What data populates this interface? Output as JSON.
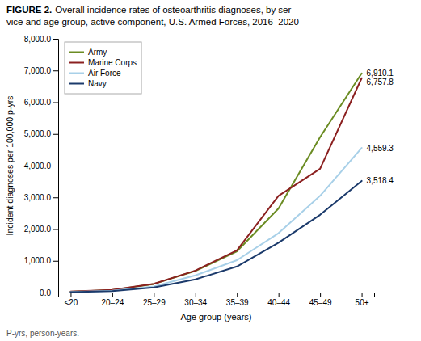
{
  "chart_data": {
    "type": "line",
    "title": "FIGURE 2.",
    "subtitle": "Overall incidence rates of osteoarthritis diagnoses, by ser-\nvice and age group, active component, U.S. Armed Forces, 2016–2020",
    "xlabel": "Age group (years)",
    "ylabel": "Incident diagnoses per 100,000 p-yrs",
    "annotations": [
      "P-yrs, person-years."
    ],
    "categories": [
      "<20",
      "20–24",
      "25–29",
      "30–34",
      "35–39",
      "40–44",
      "45–49",
      "50+"
    ],
    "series": [
      {
        "name": "Army",
        "color": "#6b8c23",
        "values": [
          25,
          75,
          270,
          680,
          1300,
          2650,
          4900,
          6910.1
        ],
        "value_labels": [
          null,
          null,
          null,
          null,
          null,
          null,
          null,
          "6,910.1"
        ]
      },
      {
        "name": "Marine Corps",
        "color": "#8b2020",
        "values": [
          30,
          85,
          275,
          690,
          1330,
          3050,
          3900,
          6757.8
        ],
        "value_labels": [
          null,
          null,
          null,
          null,
          null,
          null,
          null,
          "6,757.8"
        ]
      },
      {
        "name": "Air Force",
        "color": "#a8d0e8",
        "values": [
          18,
          55,
          190,
          540,
          1020,
          1870,
          3050,
          4559.3
        ],
        "value_labels": [
          null,
          null,
          null,
          null,
          null,
          null,
          null,
          "4,559.3"
        ]
      },
      {
        "name": "Navy",
        "color": "#1b3a6b",
        "values": [
          12,
          45,
          160,
          415,
          820,
          1570,
          2450,
          3518.4
        ],
        "value_labels": [
          null,
          null,
          null,
          null,
          null,
          null,
          null,
          "3,518.4"
        ]
      }
    ],
    "ylim": [
      0,
      8000
    ],
    "yticks": [
      {
        "value": 0,
        "label": "0.0"
      },
      {
        "value": 1000,
        "label": "1,000.0"
      },
      {
        "value": 2000,
        "label": "2,000.0"
      },
      {
        "value": 3000,
        "label": "3,000.0"
      },
      {
        "value": 4000,
        "label": "4,000.0"
      },
      {
        "value": 5000,
        "label": "5,000.0"
      },
      {
        "value": 6000,
        "label": "6,000.0"
      },
      {
        "value": 7000,
        "label": "7,000.0"
      },
      {
        "value": 8000,
        "label": "8,000.0"
      }
    ],
    "grid": false,
    "legend": "top-left"
  }
}
